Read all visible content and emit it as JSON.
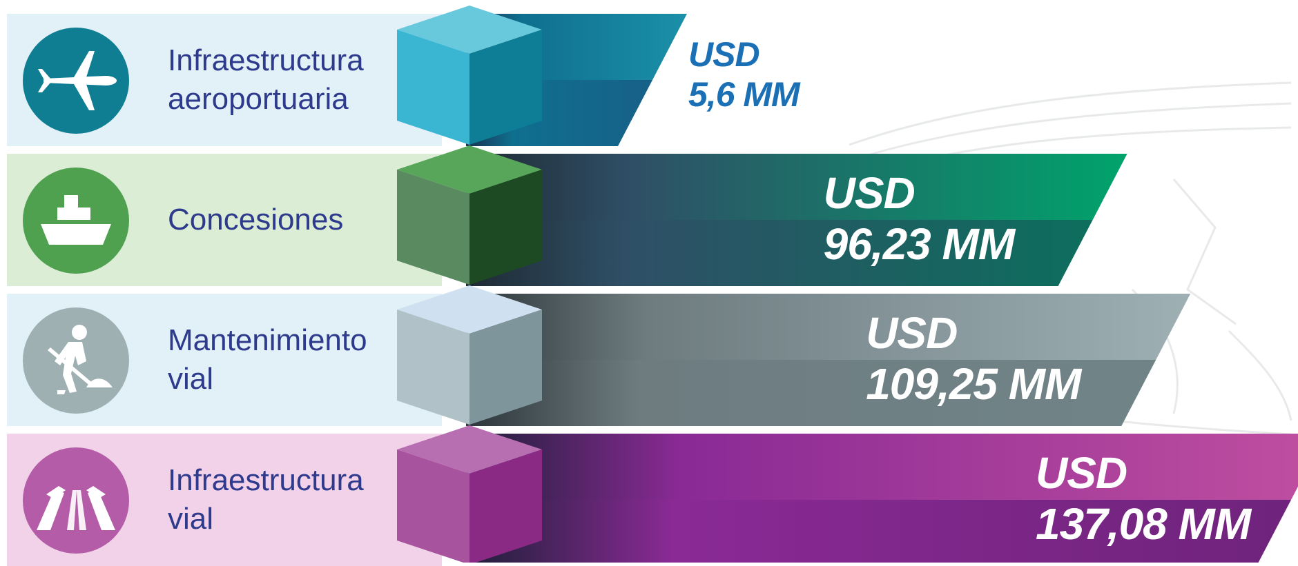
{
  "colors": {
    "label_text": "#2e3a8c",
    "aero": "#0f7e93",
    "concesiones": "#4fa04f",
    "mantenimiento": "#9fb0b3",
    "vial": "#b55ca8"
  },
  "chart_data": {
    "type": "bar",
    "orientation": "horizontal",
    "categories": [
      "Infraestructura aeroportuaria",
      "Concesiones",
      "Mantenimiento vial",
      "Infraestructura vial"
    ],
    "values": [
      5.6,
      96.23,
      109.25,
      137.08
    ],
    "unit": "USD MM",
    "rows": [
      {
        "label_lines": [
          "Infraestructura",
          "aeroportuaria"
        ],
        "icon": "airplane-icon",
        "value": 5.6,
        "value_currency": "USD",
        "value_text": "5,6 MM",
        "color": "#0f7e93"
      },
      {
        "label_lines": [
          "Concesiones"
        ],
        "icon": "ship-icon",
        "value": 96.23,
        "value_currency": "USD",
        "value_text": "96,23 MM",
        "color": "#009a62"
      },
      {
        "label_lines": [
          "Mantenimiento",
          "vial"
        ],
        "icon": "road-worker-icon",
        "value": 109.25,
        "value_currency": "USD",
        "value_text": "109,25 MM",
        "color": "#8fa2a6"
      },
      {
        "label_lines": [
          "Infraestructura",
          "vial"
        ],
        "icon": "road-icon",
        "value": 137.08,
        "value_currency": "USD",
        "value_text": "137,08 MM",
        "color": "#a0359a"
      }
    ]
  }
}
